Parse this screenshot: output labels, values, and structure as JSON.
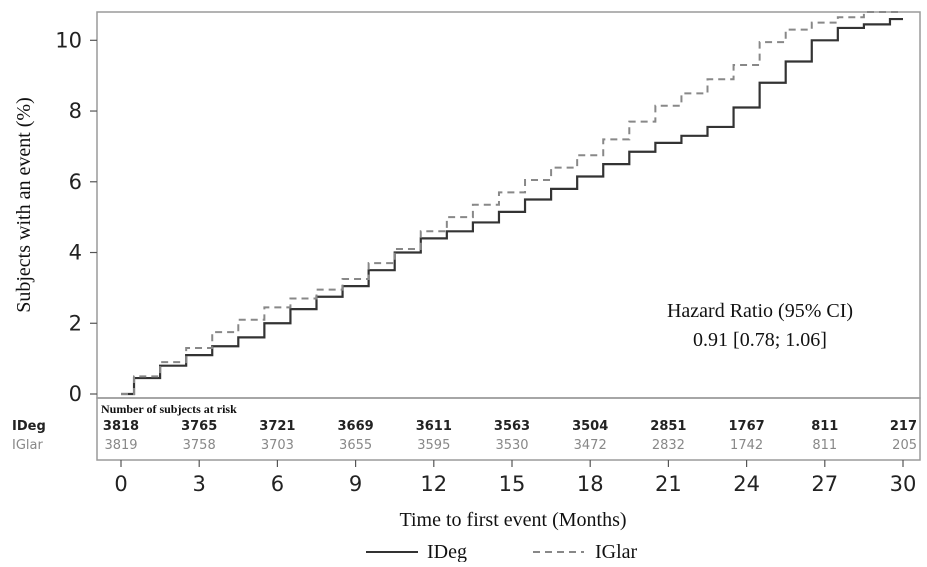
{
  "chart_data": {
    "type": "line",
    "title": "",
    "xlabel": "Time to first event (Months)",
    "ylabel": "Subjects with an event (%)",
    "xlim": [
      0,
      30
    ],
    "ylim": [
      0,
      10.8
    ],
    "xticks": [
      0,
      3,
      6,
      9,
      12,
      15,
      18,
      21,
      24,
      27,
      30
    ],
    "yticks": [
      0,
      2,
      4,
      6,
      8,
      10
    ],
    "grid": false,
    "legend_position": "bottom-center",
    "series": [
      {
        "name": "IDeg",
        "style": "solid",
        "color": "#333333",
        "x": [
          0,
          1,
          2,
          3,
          4,
          5,
          6,
          7,
          8,
          9,
          10,
          11,
          12,
          13,
          14,
          15,
          16,
          17,
          18,
          19,
          20,
          21,
          22,
          23,
          24,
          25,
          26,
          27,
          28,
          29,
          30
        ],
        "y": [
          0,
          0.45,
          0.8,
          1.1,
          1.35,
          1.6,
          2.0,
          2.4,
          2.75,
          3.05,
          3.5,
          4.0,
          4.4,
          4.6,
          4.85,
          5.15,
          5.5,
          5.8,
          6.15,
          6.5,
          6.85,
          7.1,
          7.3,
          7.55,
          8.1,
          8.8,
          9.4,
          10.0,
          10.35,
          10.45,
          10.6
        ]
      },
      {
        "name": "IGlar",
        "style": "dashed",
        "color": "#888888",
        "x": [
          0,
          1,
          2,
          3,
          4,
          5,
          6,
          7,
          8,
          9,
          10,
          11,
          12,
          13,
          14,
          15,
          16,
          17,
          18,
          19,
          20,
          21,
          22,
          23,
          24,
          25,
          26,
          27,
          28,
          29,
          30
        ],
        "y": [
          0,
          0.5,
          0.9,
          1.3,
          1.75,
          2.1,
          2.45,
          2.7,
          2.95,
          3.25,
          3.7,
          4.1,
          4.6,
          5.0,
          5.35,
          5.7,
          6.05,
          6.4,
          6.75,
          7.2,
          7.7,
          8.15,
          8.5,
          8.9,
          9.3,
          9.95,
          10.3,
          10.5,
          10.65,
          10.8,
          10.8
        ]
      }
    ],
    "annotation": {
      "line1": "Hazard Ratio (95% CI)",
      "line2": "0.91 [0.78; 1.06]"
    },
    "risk_table": {
      "title": "Number of subjects at risk",
      "rows": [
        {
          "label": "IDeg",
          "color": "#222222",
          "values": [
            "3818",
            "3765",
            "3721",
            "3669",
            "3611",
            "3563",
            "3504",
            "2851",
            "1767",
            "811",
            "217"
          ]
        },
        {
          "label": "IGlar",
          "color": "#888888",
          "values": [
            "3819",
            "3758",
            "3703",
            "3655",
            "3595",
            "3530",
            "3472",
            "2832",
            "1742",
            "811",
            "205"
          ]
        }
      ]
    }
  }
}
